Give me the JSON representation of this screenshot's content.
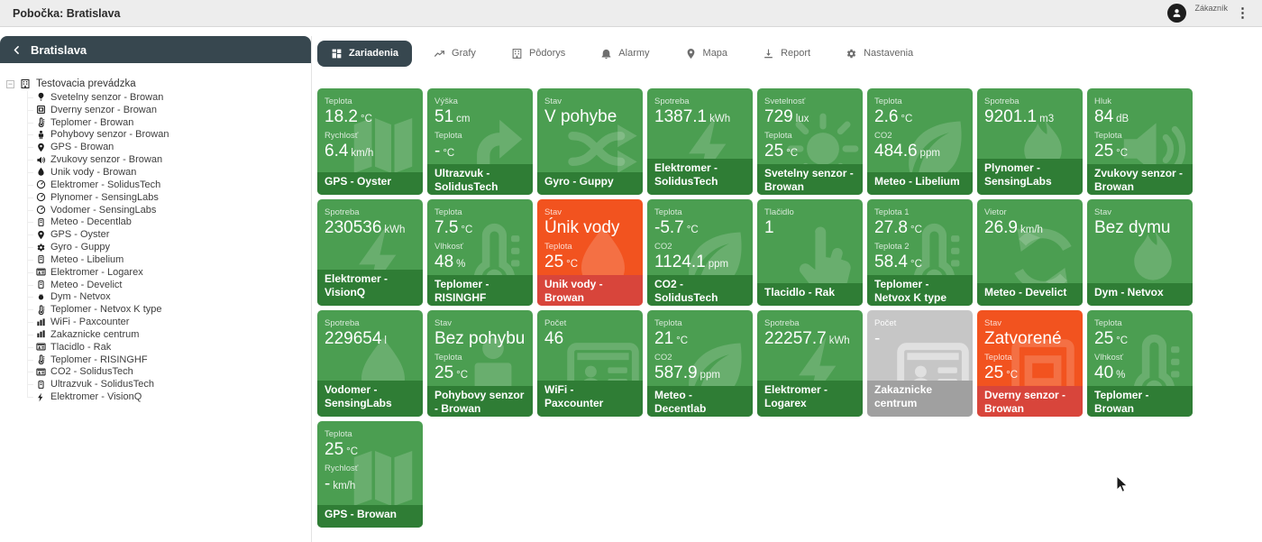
{
  "topbar": {
    "title": "Pobočka: Bratislava",
    "user_label": "Zákazník"
  },
  "palette": {
    "topbar_bg": "#ededed",
    "header_dark": "#37474f",
    "green_body": "#4b9e51",
    "green_footer": "#2f7d35",
    "orange_body": "#f2531f",
    "orange_footer": "#d8453b",
    "gray_body": "#c6c6c6",
    "gray_footer": "#a0a0a0"
  },
  "sidebar": {
    "header": "Bratislava",
    "tree": {
      "root": "Testovacia prevádzka",
      "items": [
        {
          "label": "Svetelny senzor - Browan",
          "icon": "bulb"
        },
        {
          "label": "Dverny senzor - Browan",
          "icon": "window"
        },
        {
          "label": "Teplomer - Browan",
          "icon": "thermometer"
        },
        {
          "label": "Pohybovy senzor - Browan",
          "icon": "person"
        },
        {
          "label": "GPS - Browan",
          "icon": "pin"
        },
        {
          "label": "Zvukovy senzor - Browan",
          "icon": "speaker"
        },
        {
          "label": "Unik vody - Browan",
          "icon": "drop"
        },
        {
          "label": "Elektromer - SolidusTech",
          "icon": "gauge"
        },
        {
          "label": "Plynomer - SensingLabs",
          "icon": "gauge"
        },
        {
          "label": "Vodomer - SensingLabs",
          "icon": "gauge"
        },
        {
          "label": "Meteo - Decentlab",
          "icon": "device"
        },
        {
          "label": "GPS - Oyster",
          "icon": "pin"
        },
        {
          "label": "Gyro - Guppy",
          "icon": "gear"
        },
        {
          "label": "Meteo - Libelium",
          "icon": "device"
        },
        {
          "label": "Elektromer - Logarex",
          "icon": "id-card"
        },
        {
          "label": "Meteo - Develict",
          "icon": "device"
        },
        {
          "label": "Dym - Netvox",
          "icon": "flame"
        },
        {
          "label": "Teplomer - Netvox K type",
          "icon": "thermometer"
        },
        {
          "label": "WiFi - Paxcounter",
          "icon": "bars"
        },
        {
          "label": "Zakaznicke centrum",
          "icon": "bars"
        },
        {
          "label": "Tlacidlo - Rak",
          "icon": "id-card"
        },
        {
          "label": "Teplomer - RISINGHF",
          "icon": "thermometer"
        },
        {
          "label": "CO2 - SolidusTech",
          "icon": "id-card"
        },
        {
          "label": "Ultrazvuk - SolidusTech",
          "icon": "device"
        },
        {
          "label": "Elektromer - VisionQ",
          "icon": "bolt"
        }
      ]
    }
  },
  "tabs": [
    {
      "label": "Zariadenia",
      "icon": "grid",
      "active": true
    },
    {
      "label": "Grafy",
      "icon": "chart",
      "active": false
    },
    {
      "label": "Pôdorys",
      "icon": "building",
      "active": false
    },
    {
      "label": "Alarmy",
      "icon": "bell",
      "active": false
    },
    {
      "label": "Mapa",
      "icon": "pin",
      "active": false
    },
    {
      "label": "Report",
      "icon": "download",
      "active": false
    },
    {
      "label": "Nastavenia",
      "icon": "gear",
      "active": false
    }
  ],
  "tiles": [
    {
      "color": "green",
      "icon": "map",
      "device": "GPS - Oyster",
      "metrics": [
        {
          "label": "Teplota",
          "value": "18.2",
          "unit": "°C"
        },
        {
          "label": "Rychlosť",
          "value": "6.4",
          "unit": "km/h"
        }
      ]
    },
    {
      "color": "green",
      "icon": "arrow-up",
      "device": "Ultrazvuk - SolidusTech",
      "metrics": [
        {
          "label": "Výška",
          "value": "51",
          "unit": "cm"
        },
        {
          "label": "Teplota",
          "value": "-",
          "unit": "°C"
        }
      ]
    },
    {
      "color": "green",
      "icon": "shuffle",
      "device": "Gyro - Guppy",
      "metrics": [
        {
          "label": "Stav",
          "value": "V pohybe",
          "unit": ""
        }
      ]
    },
    {
      "color": "green",
      "icon": "bolt",
      "device": "Elektromer - SolidusTech",
      "metrics": [
        {
          "label": "Spotreba",
          "value": "1387.1",
          "unit": "kWh"
        }
      ]
    },
    {
      "color": "green",
      "icon": "sun",
      "device": "Svetelny senzor - Browan",
      "metrics": [
        {
          "label": "Svetelnosť",
          "value": "729",
          "unit": "lux"
        },
        {
          "label": "Teplota",
          "value": "25",
          "unit": "°C"
        }
      ]
    },
    {
      "color": "green",
      "icon": "leaf",
      "device": "Meteo - Libelium",
      "metrics": [
        {
          "label": "Teplota",
          "value": "2.6",
          "unit": "°C"
        },
        {
          "label": "CO2",
          "value": "484.6",
          "unit": "ppm"
        }
      ]
    },
    {
      "color": "green",
      "icon": "flame",
      "device": "Plynomer - SensingLabs",
      "metrics": [
        {
          "label": "Spotreba",
          "value": "9201.1",
          "unit": "m3"
        }
      ]
    },
    {
      "color": "green",
      "icon": "speaker",
      "device": "Zvukovy senzor - Browan",
      "metrics": [
        {
          "label": "Hluk",
          "value": "84",
          "unit": "dB"
        },
        {
          "label": "Teplota",
          "value": "25",
          "unit": "°C"
        }
      ]
    },
    {
      "color": "green",
      "icon": "bolt",
      "device": "Elektromer - VisionQ",
      "metrics": [
        {
          "label": "Spotreba",
          "value": "230536",
          "unit": "kWh"
        }
      ]
    },
    {
      "color": "green",
      "icon": "thermometer",
      "device": "Teplomer - RISINGHF",
      "metrics": [
        {
          "label": "Teplota",
          "value": "7.5",
          "unit": "°C"
        },
        {
          "label": "Vlhkosť",
          "value": "48",
          "unit": "%"
        }
      ]
    },
    {
      "color": "orange",
      "icon": "drop",
      "device": "Unik vody - Browan",
      "metrics": [
        {
          "label": "Stav",
          "value": "Únik vody",
          "unit": ""
        },
        {
          "label": "Teplota",
          "value": "25",
          "unit": "°C"
        }
      ]
    },
    {
      "color": "green",
      "icon": "leaf",
      "device": "CO2 - SolidusTech",
      "metrics": [
        {
          "label": "Teplota",
          "value": "-5.7",
          "unit": "°C"
        },
        {
          "label": "CO2",
          "value": "1124.1",
          "unit": "ppm"
        }
      ]
    },
    {
      "color": "green",
      "icon": "hand",
      "device": "Tlacidlo - Rak",
      "metrics": [
        {
          "label": "Tlačidlo",
          "value": "1",
          "unit": ""
        }
      ]
    },
    {
      "color": "green",
      "icon": "thermometer",
      "device": "Teplomer - Netvox K type",
      "metrics": [
        {
          "label": "Teplota 1",
          "value": "27.8",
          "unit": "°C"
        },
        {
          "label": "Teplota 2",
          "value": "58.4",
          "unit": "°C"
        }
      ]
    },
    {
      "color": "green",
      "icon": "refresh",
      "device": "Meteo - Develict",
      "metrics": [
        {
          "label": "Vietor",
          "value": "26.9",
          "unit": "km/h"
        }
      ]
    },
    {
      "color": "green",
      "icon": "flame",
      "device": "Dym - Netvox",
      "metrics": [
        {
          "label": "Stav",
          "value": "Bez dymu",
          "unit": ""
        }
      ]
    },
    {
      "color": "green",
      "icon": "drop",
      "device": "Vodomer - SensingLabs",
      "metrics": [
        {
          "label": "Spotreba",
          "value": "229654",
          "unit": "l"
        }
      ]
    },
    {
      "color": "green",
      "icon": "person",
      "device": "Pohybovy senzor - Browan",
      "metrics": [
        {
          "label": "Stav",
          "value": "Bez pohybu",
          "unit": ""
        },
        {
          "label": "Teplota",
          "value": "25",
          "unit": "°C"
        }
      ]
    },
    {
      "color": "green",
      "icon": "id-card",
      "device": "WiFi - Paxcounter",
      "metrics": [
        {
          "label": "Počet",
          "value": "46",
          "unit": ""
        }
      ]
    },
    {
      "color": "green",
      "icon": "leaf",
      "device": "Meteo - Decentlab",
      "metrics": [
        {
          "label": "Teplota",
          "value": "21",
          "unit": "°C"
        },
        {
          "label": "CO2",
          "value": "587.9",
          "unit": "ppm"
        }
      ]
    },
    {
      "color": "green",
      "icon": "bolt",
      "device": "Elektromer - Logarex",
      "metrics": [
        {
          "label": "Spotreba",
          "value": "22257.7",
          "unit": "kWh"
        }
      ]
    },
    {
      "color": "gray",
      "icon": "id-card",
      "device": "Zakaznicke centrum",
      "metrics": [
        {
          "label": "Počet",
          "value": "-",
          "unit": ""
        }
      ]
    },
    {
      "color": "orange",
      "icon": "window",
      "device": "Dverny senzor - Browan",
      "metrics": [
        {
          "label": "Stav",
          "value": "Zatvorené",
          "unit": ""
        },
        {
          "label": "Teplota",
          "value": "25",
          "unit": "°C"
        }
      ]
    },
    {
      "color": "green",
      "icon": "thermometer",
      "device": "Teplomer - Browan",
      "metrics": [
        {
          "label": "Teplota",
          "value": "25",
          "unit": "°C"
        },
        {
          "label": "Vlhkosť",
          "value": "40",
          "unit": "%"
        }
      ]
    },
    {
      "color": "green",
      "icon": "map",
      "device": "GPS - Browan",
      "metrics": [
        {
          "label": "Teplota",
          "value": "25",
          "unit": "°C"
        },
        {
          "label": "Rychlosť",
          "value": "-",
          "unit": "km/h"
        }
      ]
    }
  ]
}
